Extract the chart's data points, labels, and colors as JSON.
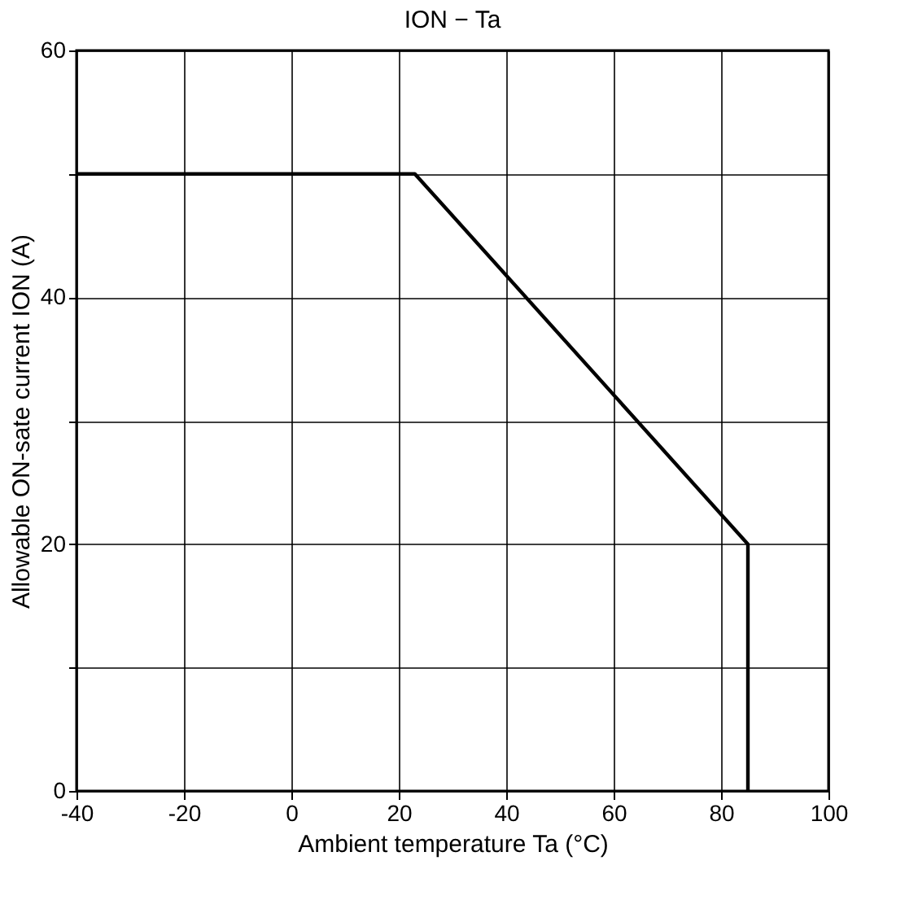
{
  "chart_data": {
    "type": "line",
    "title": "ION − Ta",
    "xlabel": "Ambient temperature  Ta (°C)",
    "ylabel": "Allowable ON-sate current   ION   (A)",
    "x": [
      -40,
      23,
      85,
      85
    ],
    "series": [
      {
        "color": "#000000",
        "values": [
          50,
          50,
          20,
          0
        ]
      }
    ],
    "xlim": [
      -40,
      100
    ],
    "xticks": [
      -40,
      -20,
      0,
      20,
      40,
      60,
      80,
      100
    ],
    "ylim": [
      0,
      60
    ],
    "yticks": [
      0,
      {
        "value": 10,
        "label": null
      },
      20,
      {
        "value": 30,
        "label": null
      },
      40,
      {
        "value": 50,
        "label": null
      },
      60
    ],
    "grid": true,
    "marker": "none",
    "line_style": "solid"
  }
}
